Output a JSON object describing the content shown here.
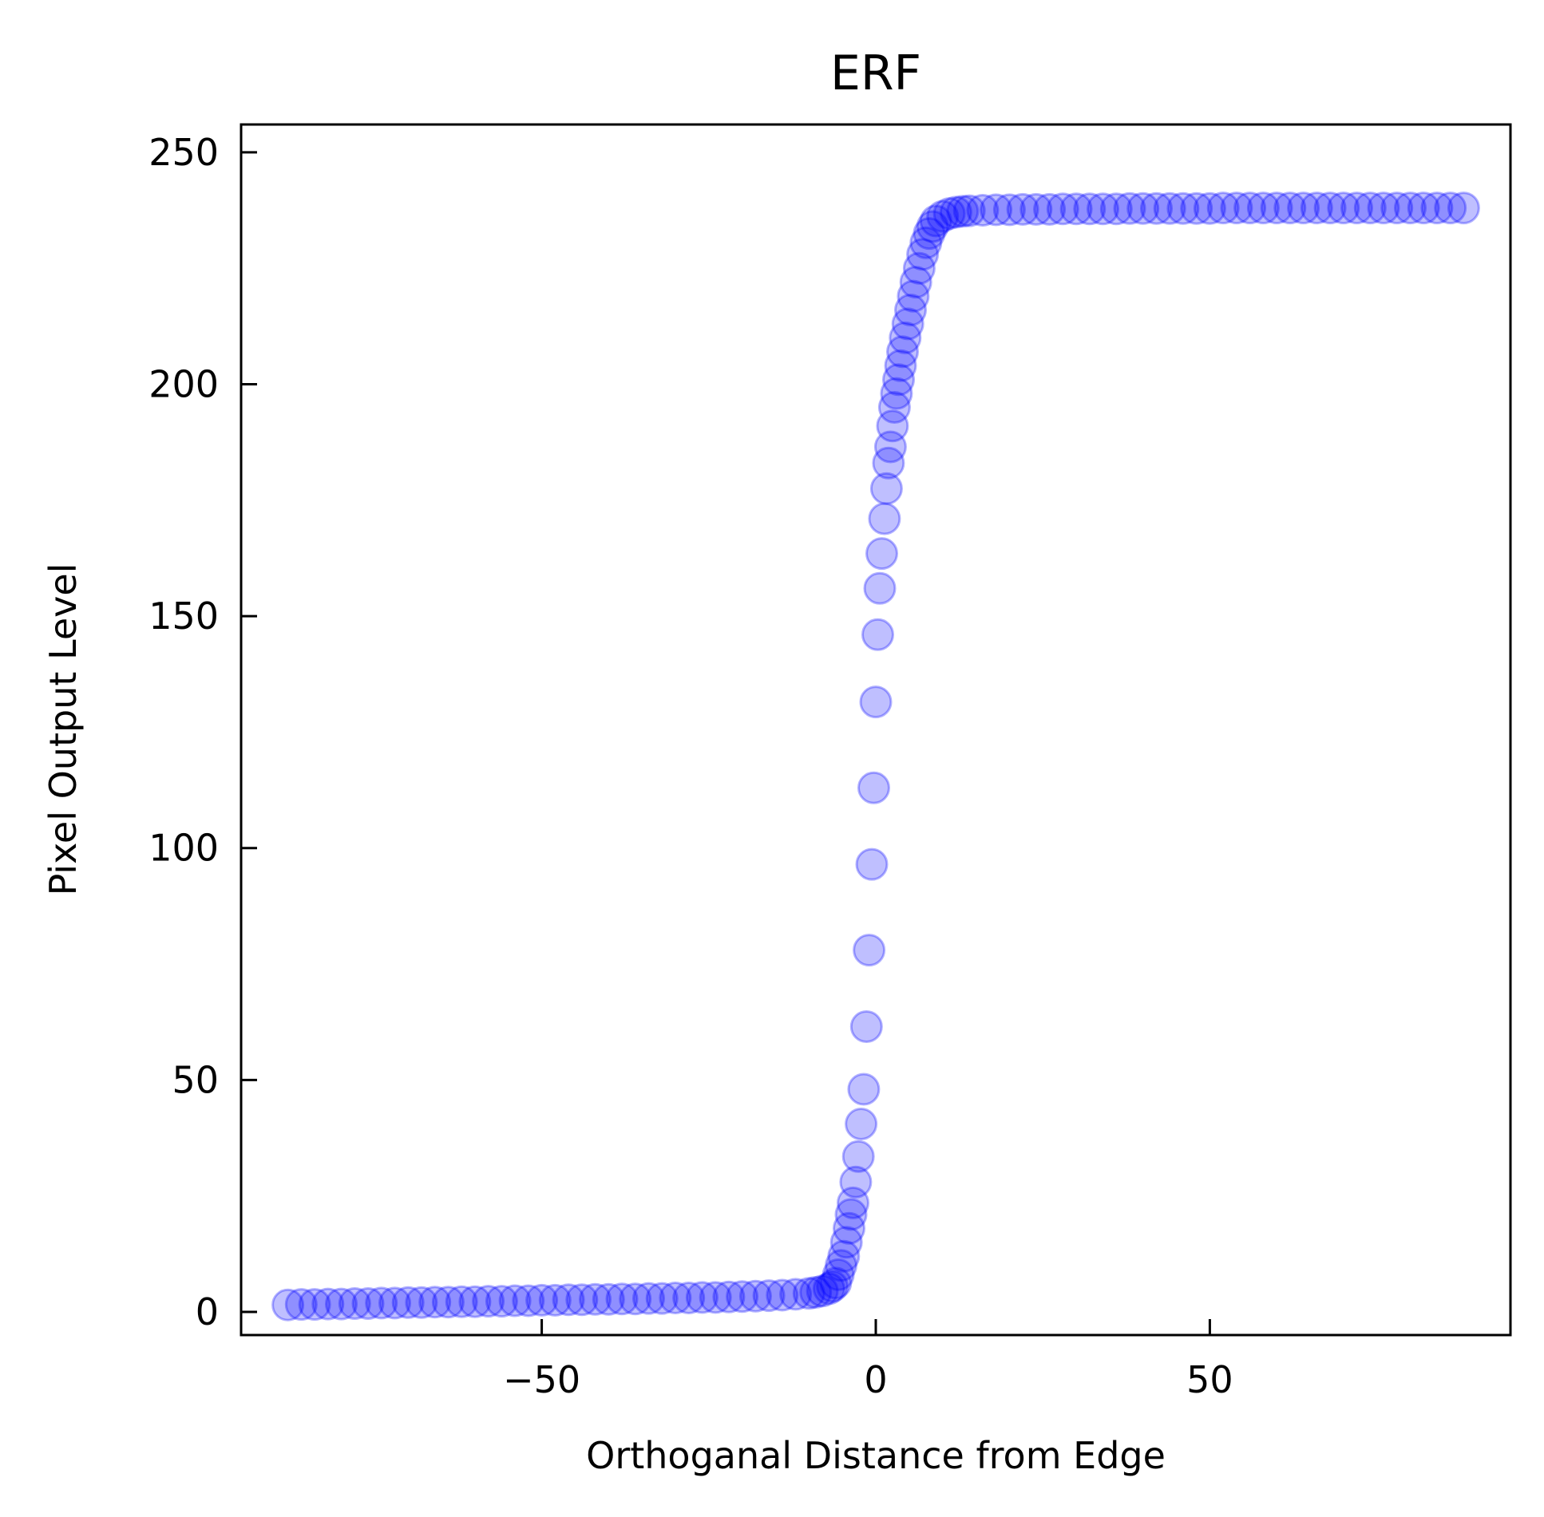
{
  "chart_data": {
    "type": "scatter",
    "title": "ERF",
    "xlabel": "Orthoganal Distance from Edge",
    "ylabel": "Pixel Output Level",
    "xlim": [
      -95,
      95
    ],
    "ylim": [
      -5,
      256
    ],
    "xticks": [
      -50,
      0,
      50
    ],
    "xtick_labels": [
      "−50",
      "0",
      "50"
    ],
    "yticks": [
      0,
      50,
      100,
      150,
      200,
      250
    ],
    "ytick_labels": [
      "0",
      "50",
      "100",
      "150",
      "200",
      "250"
    ],
    "grid": false,
    "legend": "none",
    "marker_color": "#0000ff",
    "series": [
      {
        "points": [
          [
            -88,
            1.5
          ],
          [
            -86,
            1.6
          ],
          [
            -84,
            1.6
          ],
          [
            -82,
            1.7
          ],
          [
            -80,
            1.7
          ],
          [
            -78,
            1.8
          ],
          [
            -76,
            1.8
          ],
          [
            -74,
            1.9
          ],
          [
            -72,
            1.9
          ],
          [
            -70,
            2.0
          ],
          [
            -68,
            2.0
          ],
          [
            -66,
            2.1
          ],
          [
            -64,
            2.1
          ],
          [
            -62,
            2.2
          ],
          [
            -60,
            2.2
          ],
          [
            -58,
            2.3
          ],
          [
            -56,
            2.3
          ],
          [
            -54,
            2.4
          ],
          [
            -52,
            2.4
          ],
          [
            -50,
            2.5
          ],
          [
            -48,
            2.5
          ],
          [
            -46,
            2.6
          ],
          [
            -44,
            2.6
          ],
          [
            -42,
            2.7
          ],
          [
            -40,
            2.7
          ],
          [
            -38,
            2.8
          ],
          [
            -36,
            2.8
          ],
          [
            -34,
            2.9
          ],
          [
            -32,
            2.9
          ],
          [
            -30,
            3.0
          ],
          [
            -28,
            3.0
          ],
          [
            -26,
            3.1
          ],
          [
            -24,
            3.1
          ],
          [
            -22,
            3.2
          ],
          [
            -20,
            3.3
          ],
          [
            -18,
            3.4
          ],
          [
            -16,
            3.5
          ],
          [
            -14,
            3.6
          ],
          [
            -12,
            3.8
          ],
          [
            -10,
            4.0
          ],
          [
            -9,
            4.2
          ],
          [
            -8,
            4.5
          ],
          [
            -7,
            5.0
          ],
          [
            -6.5,
            5.5
          ],
          [
            -6,
            6.2
          ],
          [
            -5.6,
            8
          ],
          [
            -5.2,
            10
          ],
          [
            -4.8,
            12
          ],
          [
            -4.4,
            15
          ],
          [
            -4.0,
            18
          ],
          [
            -3.7,
            21
          ],
          [
            -3.4,
            23.5
          ],
          [
            -3.0,
            28
          ],
          [
            -2.6,
            33.5
          ],
          [
            -2.2,
            40.5
          ],
          [
            -1.8,
            48
          ],
          [
            -1.4,
            61.5
          ],
          [
            -1.0,
            78
          ],
          [
            -0.6,
            96.5
          ],
          [
            -0.3,
            113
          ],
          [
            0.0,
            131.5
          ],
          [
            0.3,
            146
          ],
          [
            0.6,
            156
          ],
          [
            0.9,
            163.5
          ],
          [
            1.3,
            171
          ],
          [
            1.6,
            177.5
          ],
          [
            1.9,
            183
          ],
          [
            2.2,
            186.5
          ],
          [
            2.5,
            191
          ],
          [
            2.8,
            195
          ],
          [
            3.1,
            198
          ],
          [
            3.4,
            201
          ],
          [
            3.7,
            204
          ],
          [
            4.0,
            207
          ],
          [
            4.4,
            210
          ],
          [
            4.8,
            213
          ],
          [
            5.2,
            216
          ],
          [
            5.6,
            219
          ],
          [
            6.0,
            222
          ],
          [
            6.5,
            225
          ],
          [
            7.0,
            228
          ],
          [
            7.5,
            230.5
          ],
          [
            8.0,
            232.5
          ],
          [
            8.5,
            234
          ],
          [
            9.0,
            235.2
          ],
          [
            10,
            236.2
          ],
          [
            11,
            236.8
          ],
          [
            12,
            237.1
          ],
          [
            13,
            237.3
          ],
          [
            14,
            237.4
          ],
          [
            16,
            237.5
          ],
          [
            18,
            237.6
          ],
          [
            20,
            237.6
          ],
          [
            22,
            237.7
          ],
          [
            24,
            237.7
          ],
          [
            26,
            237.7
          ],
          [
            28,
            237.8
          ],
          [
            30,
            237.8
          ],
          [
            32,
            237.8
          ],
          [
            34,
            237.8
          ],
          [
            36,
            237.8
          ],
          [
            38,
            237.9
          ],
          [
            40,
            237.9
          ],
          [
            42,
            237.9
          ],
          [
            44,
            237.9
          ],
          [
            46,
            237.9
          ],
          [
            48,
            237.9
          ],
          [
            50,
            237.9
          ],
          [
            52,
            238.0
          ],
          [
            54,
            238.0
          ],
          [
            56,
            238.0
          ],
          [
            58,
            238.0
          ],
          [
            60,
            238.0
          ],
          [
            62,
            238.0
          ],
          [
            64,
            238.0
          ],
          [
            66,
            238.0
          ],
          [
            68,
            238.0
          ],
          [
            70,
            238.0
          ],
          [
            72,
            238.0
          ],
          [
            74,
            238.0
          ],
          [
            76,
            238.0
          ],
          [
            78,
            238.0
          ],
          [
            80,
            238.0
          ],
          [
            82,
            238.0
          ],
          [
            84,
            238.0
          ],
          [
            86,
            238.0
          ],
          [
            88,
            238.0
          ]
        ]
      }
    ]
  }
}
